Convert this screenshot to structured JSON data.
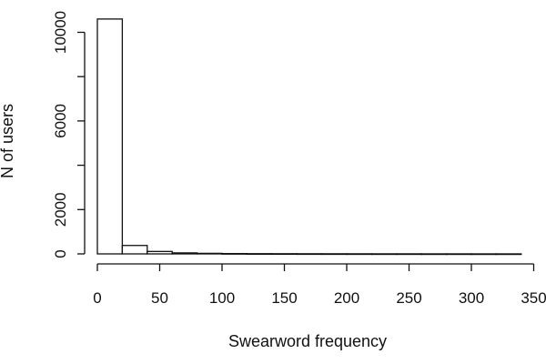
{
  "chart_data": {
    "type": "bar",
    "subtype": "histogram",
    "title": "",
    "xlabel": "Swearword frequency",
    "ylabel": "N of users",
    "bin_width": 20,
    "bins": [
      {
        "x0": 0,
        "x1": 20,
        "count": 10600
      },
      {
        "x0": 20,
        "x1": 40,
        "count": 380
      },
      {
        "x0": 40,
        "x1": 60,
        "count": 110
      },
      {
        "x0": 60,
        "x1": 80,
        "count": 45
      },
      {
        "x0": 80,
        "x1": 100,
        "count": 25
      },
      {
        "x0": 100,
        "x1": 120,
        "count": 15
      },
      {
        "x0": 120,
        "x1": 140,
        "count": 10
      },
      {
        "x0": 140,
        "x1": 160,
        "count": 8
      },
      {
        "x0": 160,
        "x1": 180,
        "count": 6
      },
      {
        "x0": 180,
        "x1": 200,
        "count": 5
      },
      {
        "x0": 200,
        "x1": 220,
        "count": 4
      },
      {
        "x0": 220,
        "x1": 240,
        "count": 3
      },
      {
        "x0": 240,
        "x1": 260,
        "count": 3
      },
      {
        "x0": 260,
        "x1": 280,
        "count": 2
      },
      {
        "x0": 280,
        "x1": 300,
        "count": 2
      },
      {
        "x0": 300,
        "x1": 320,
        "count": 1
      },
      {
        "x0": 320,
        "x1": 340,
        "count": 1
      }
    ],
    "xticks": [
      "0",
      "50",
      "100",
      "150",
      "200",
      "250",
      "300",
      "350"
    ],
    "yticks": [
      "0",
      "2000",
      "6000",
      "10000"
    ],
    "y_minor_ticks": [
      4000,
      8000
    ],
    "xlim": [
      0,
      350
    ],
    "ylim": [
      0,
      11000
    ],
    "grid": false,
    "legend": "none"
  }
}
